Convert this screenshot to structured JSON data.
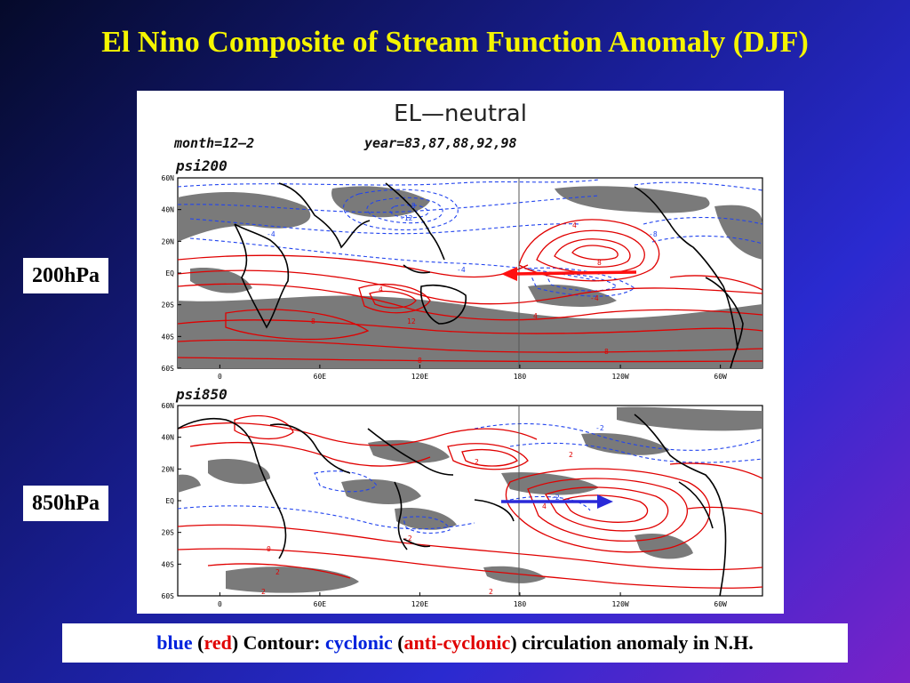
{
  "title": "El Nino Composite of Stream Function Anomaly (DJF)",
  "labels": {
    "upper": "200hPa",
    "lower": "850hPa"
  },
  "figure": {
    "heading": "EL—neutral",
    "months": "month=12–2",
    "years": "year=83,87,88,92,98",
    "panel_upper": "psi200",
    "panel_lower": "psi850",
    "lat_ticks": [
      "60N",
      "40N",
      "20N",
      "EQ",
      "20S",
      "40S",
      "60S"
    ],
    "lon_ticks": [
      "0",
      "60E",
      "120E",
      "180",
      "120W",
      "60W"
    ],
    "upper_contours": [
      "-8",
      "-4",
      "-12",
      "-4",
      "-8",
      "4",
      "8",
      "12",
      "4",
      "8",
      "4",
      "8",
      "-4",
      "8"
    ],
    "lower_contours": [
      "-2",
      "2",
      "-2",
      "2",
      "4",
      "2",
      "-2",
      "0",
      "2",
      "2"
    ]
  },
  "caption": {
    "blue": "blue",
    "open1": " (",
    "red": "red",
    "mid": ") Contour: ",
    "cyclonic": "cyclonic",
    "open2": " (",
    "anticyclonic": "anti-cyclonic",
    "tail": ") circulation anomaly in N.H."
  },
  "colors": {
    "title": "#f5f500",
    "positive_contour": "#e00000",
    "negative_contour": "#2244ee",
    "shading": "#7a7a7a"
  }
}
